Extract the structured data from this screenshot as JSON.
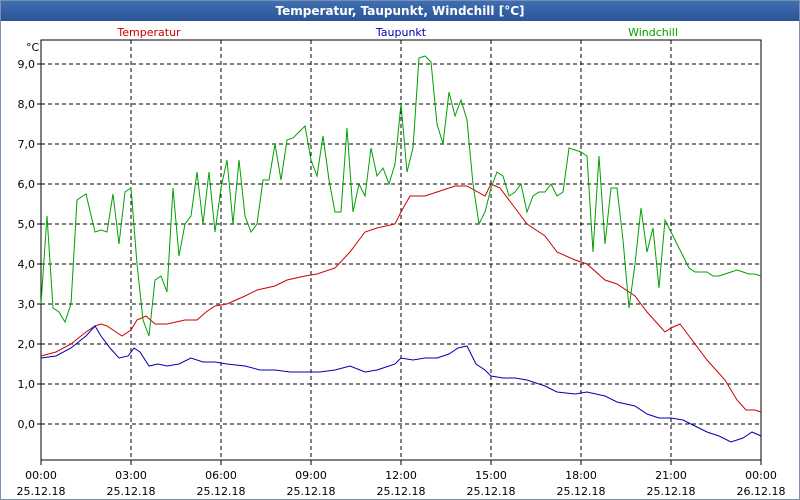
{
  "window": {
    "title": "Temperatur, Taupunkt, Windchill [°C]"
  },
  "chart_data": {
    "type": "line",
    "title": "Temperatur, Taupunkt, Windchill [°C]",
    "ylabel": "°C",
    "xlabel": "",
    "ylim": [
      -0.9,
      9.6
    ],
    "xlim": [
      0,
      24
    ],
    "grid": true,
    "legend_placement": "top",
    "y_ticks": [
      {
        "value": 0,
        "label": "0,0"
      },
      {
        "value": 1,
        "label": "1,0"
      },
      {
        "value": 2,
        "label": "2,0"
      },
      {
        "value": 3,
        "label": "3,0"
      },
      {
        "value": 4,
        "label": "4,0"
      },
      {
        "value": 5,
        "label": "5,0"
      },
      {
        "value": 6,
        "label": "6,0"
      },
      {
        "value": 7,
        "label": "7,0"
      },
      {
        "value": 8,
        "label": "8,0"
      },
      {
        "value": 9,
        "label": "9,0"
      }
    ],
    "x_ticks": [
      {
        "hour": 0,
        "time": "00:00",
        "date": "25.12.18"
      },
      {
        "hour": 3,
        "time": "03:00",
        "date": "25.12.18"
      },
      {
        "hour": 6,
        "time": "06:00",
        "date": "25.12.18"
      },
      {
        "hour": 9,
        "time": "09:00",
        "date": "25.12.18"
      },
      {
        "hour": 12,
        "time": "12:00",
        "date": "25.12.18"
      },
      {
        "hour": 15,
        "time": "15:00",
        "date": "25.12.18"
      },
      {
        "hour": 18,
        "time": "18:00",
        "date": "25.12.18"
      },
      {
        "hour": 21,
        "time": "21:00",
        "date": "25.12.18"
      },
      {
        "hour": 24,
        "time": "00:00",
        "date": "26.12.18"
      }
    ],
    "series": [
      {
        "name": "Temperatur",
        "color": "#cc0000",
        "x": [
          0,
          0.5,
          1,
          1.5,
          1.8,
          2,
          2.2,
          2.5,
          2.7,
          3,
          3.2,
          3.5,
          3.8,
          4.2,
          4.8,
          5.2,
          5.5,
          5.8,
          6.2,
          6.8,
          7.2,
          7.8,
          8.2,
          8.8,
          9.2,
          9.8,
          10.3,
          10.8,
          11.2,
          11.8,
          12,
          12.3,
          12.8,
          13.2,
          13.8,
          14.2,
          14.8,
          15,
          15.3,
          15.8,
          16.2,
          16.8,
          17.2,
          17.8,
          18.2,
          18.8,
          19.2,
          19.8,
          20.2,
          20.8,
          21,
          21.3,
          21.8,
          22.2,
          22.8,
          23.2,
          23.5,
          23.8,
          24
        ],
        "values": [
          1.7,
          1.8,
          2.0,
          2.3,
          2.45,
          2.5,
          2.45,
          2.3,
          2.2,
          2.35,
          2.6,
          2.7,
          2.5,
          2.5,
          2.6,
          2.6,
          2.8,
          2.95,
          3.0,
          3.2,
          3.35,
          3.45,
          3.6,
          3.7,
          3.75,
          3.9,
          4.3,
          4.8,
          4.9,
          5.0,
          5.3,
          5.7,
          5.7,
          5.8,
          5.95,
          5.95,
          5.7,
          6.0,
          5.9,
          5.4,
          5.0,
          4.7,
          4.3,
          4.1,
          4.0,
          3.6,
          3.5,
          3.2,
          2.8,
          2.3,
          2.4,
          2.5,
          2.0,
          1.6,
          1.1,
          0.6,
          0.35,
          0.35,
          0.3
        ]
      },
      {
        "name": "Taupunkt",
        "color": "#0000b0",
        "x": [
          0,
          0.5,
          1,
          1.5,
          1.8,
          2,
          2.3,
          2.6,
          2.9,
          3.1,
          3.3,
          3.6,
          3.9,
          4.2,
          4.6,
          5,
          5.4,
          5.8,
          6.2,
          6.8,
          7.3,
          7.8,
          8.3,
          8.8,
          9.3,
          9.8,
          10.3,
          10.8,
          11.2,
          11.8,
          12,
          12.4,
          12.8,
          13.2,
          13.6,
          13.9,
          14.2,
          14.5,
          14.8,
          15,
          15.4,
          15.8,
          16.2,
          16.8,
          17.2,
          17.8,
          18.2,
          18.8,
          19.2,
          19.8,
          20.2,
          20.6,
          21,
          21.4,
          21.8,
          22.2,
          22.6,
          23,
          23.4,
          23.7,
          24
        ],
        "values": [
          1.65,
          1.7,
          1.9,
          2.2,
          2.45,
          2.2,
          1.9,
          1.65,
          1.7,
          1.9,
          1.8,
          1.45,
          1.5,
          1.45,
          1.5,
          1.65,
          1.55,
          1.55,
          1.5,
          1.45,
          1.35,
          1.35,
          1.3,
          1.3,
          1.3,
          1.35,
          1.45,
          1.3,
          1.35,
          1.5,
          1.65,
          1.6,
          1.65,
          1.65,
          1.75,
          1.9,
          1.95,
          1.5,
          1.35,
          1.2,
          1.15,
          1.15,
          1.1,
          0.95,
          0.8,
          0.75,
          0.8,
          0.7,
          0.55,
          0.45,
          0.25,
          0.15,
          0.15,
          0.1,
          -0.05,
          -0.2,
          -0.3,
          -0.45,
          -0.35,
          -0.2,
          -0.3
        ]
      },
      {
        "name": "Windchill",
        "color": "#00a000",
        "x": [
          0,
          0.2,
          0.4,
          0.6,
          0.8,
          1,
          1.2,
          1.5,
          1.8,
          2,
          2.2,
          2.4,
          2.6,
          2.8,
          3,
          3.2,
          3.4,
          3.6,
          3.8,
          4,
          4.2,
          4.4,
          4.6,
          4.8,
          5,
          5.2,
          5.4,
          5.6,
          5.8,
          6,
          6.2,
          6.4,
          6.6,
          6.8,
          7,
          7.2,
          7.4,
          7.6,
          7.8,
          8,
          8.2,
          8.4,
          8.6,
          8.8,
          9,
          9.2,
          9.4,
          9.6,
          9.8,
          10,
          10.2,
          10.4,
          10.6,
          10.8,
          11,
          11.2,
          11.4,
          11.6,
          11.8,
          12,
          12.2,
          12.4,
          12.6,
          12.8,
          13,
          13.2,
          13.4,
          13.6,
          13.8,
          14,
          14.2,
          14.4,
          14.6,
          14.8,
          15,
          15.2,
          15.4,
          15.6,
          15.8,
          16,
          16.2,
          16.4,
          16.6,
          16.8,
          17,
          17.2,
          17.4,
          17.6,
          17.8,
          18,
          18.2,
          18.4,
          18.6,
          18.8,
          19,
          19.2,
          19.4,
          19.6,
          19.8,
          20,
          20.2,
          20.4,
          20.6,
          20.8,
          21,
          21.2,
          21.4,
          21.6,
          21.8,
          22,
          22.2,
          22.4,
          22.6,
          22.8,
          23,
          23.2,
          23.4,
          23.6,
          23.8,
          24
        ],
        "values": [
          3.0,
          5.2,
          2.9,
          2.8,
          2.55,
          3.0,
          5.6,
          5.75,
          4.8,
          4.85,
          4.8,
          5.75,
          4.5,
          5.8,
          5.9,
          4.0,
          2.6,
          2.2,
          3.6,
          3.7,
          3.3,
          5.9,
          4.2,
          5.0,
          5.2,
          6.3,
          5.0,
          6.3,
          4.8,
          5.9,
          6.6,
          5.0,
          6.6,
          5.2,
          4.8,
          5.0,
          6.1,
          6.1,
          7.0,
          6.1,
          7.1,
          7.15,
          7.3,
          7.45,
          6.6,
          6.2,
          7.2,
          6.1,
          5.3,
          5.3,
          7.4,
          5.3,
          6.0,
          5.7,
          6.9,
          6.2,
          6.4,
          6.0,
          6.5,
          8.0,
          6.3,
          6.9,
          9.15,
          9.2,
          9.05,
          7.5,
          7.0,
          8.3,
          7.7,
          8.1,
          7.6,
          6.0,
          5.0,
          5.3,
          5.9,
          6.3,
          6.2,
          5.7,
          5.8,
          6.0,
          5.3,
          5.7,
          5.8,
          5.8,
          6.0,
          5.7,
          5.8,
          6.9,
          6.85,
          6.8,
          6.7,
          4.3,
          6.7,
          4.5,
          5.9,
          5.9,
          4.6,
          2.9,
          4.0,
          5.4,
          4.3,
          4.9,
          3.4,
          5.1,
          4.8,
          4.5,
          4.2,
          3.9,
          3.8,
          3.8,
          3.8,
          3.7,
          3.7,
          3.75,
          3.8,
          3.85,
          3.8,
          3.75,
          3.75,
          3.7
        ]
      }
    ]
  }
}
